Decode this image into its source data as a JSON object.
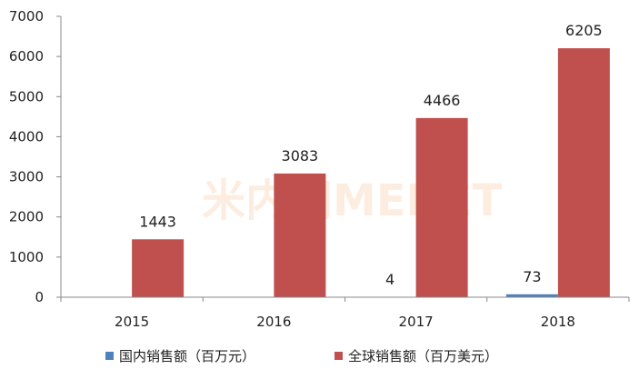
{
  "watermark": "米内网MENET",
  "chart_data": {
    "type": "bar",
    "categories": [
      "2015",
      "2016",
      "2017",
      "2018"
    ],
    "ylim": [
      0,
      7000
    ],
    "yticks": [
      0,
      1000,
      2000,
      3000,
      4000,
      5000,
      6000,
      7000
    ],
    "grid": false,
    "legend_position": "bottom",
    "series": [
      {
        "name": "国内销售额（百万元）",
        "color": "#4f81bd",
        "values": [
          0,
          0,
          4,
          73
        ],
        "labels": [
          "",
          "",
          "4",
          "73"
        ]
      },
      {
        "name": "全球销售额（百万美元）",
        "color": "#c0504d",
        "values": [
          1443,
          3083,
          4466,
          6205
        ],
        "labels": [
          "1443",
          "3083",
          "4466",
          "6205"
        ]
      }
    ]
  }
}
